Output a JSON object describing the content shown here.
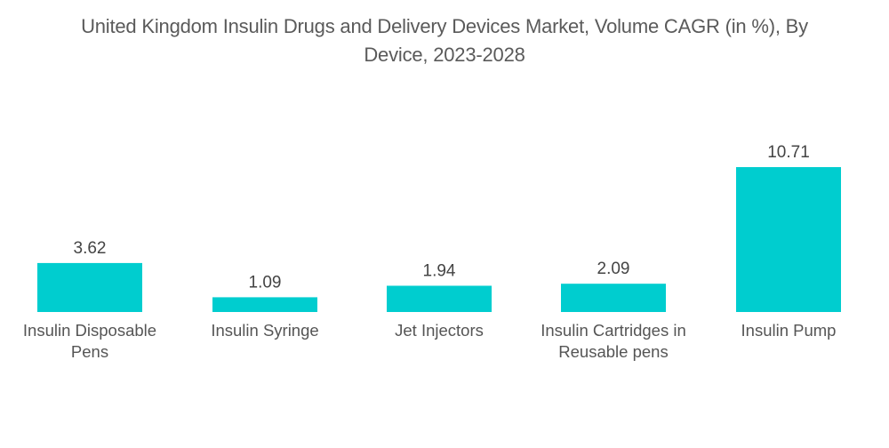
{
  "chart_data": {
    "type": "bar",
    "title": "United Kingdom Insulin Drugs and Delivery Devices Market, Volume CAGR (in %), By Device, 2023-2028",
    "title_lines": [
      "United Kingdom Insulin Drugs and Delivery Devices Market, Volume CAGR (in %), By",
      "Device, 2023-2028"
    ],
    "categories": [
      "Insulin Disposable Pens",
      "Insulin Syringe",
      "Jet Injectors",
      "Insulin Cartridges in Reusable pens",
      "Insulin Pump"
    ],
    "category_lines": [
      [
        "Insulin Disposable",
        "Pens"
      ],
      [
        "Insulin Syringe"
      ],
      [
        "Jet Injectors"
      ],
      [
        "Insulin Cartridges in",
        "Reusable pens"
      ],
      [
        "Insulin Pump"
      ]
    ],
    "values": [
      3.62,
      1.09,
      1.94,
      2.09,
      10.71
    ],
    "value_labels": [
      "3.62",
      "1.09",
      "1.94",
      "2.09",
      "10.71"
    ],
    "xlabel": "",
    "ylabel": "",
    "ylim": [
      0,
      10.71
    ],
    "grid": false,
    "legend": "none",
    "bar_color": "#00CDCF"
  }
}
